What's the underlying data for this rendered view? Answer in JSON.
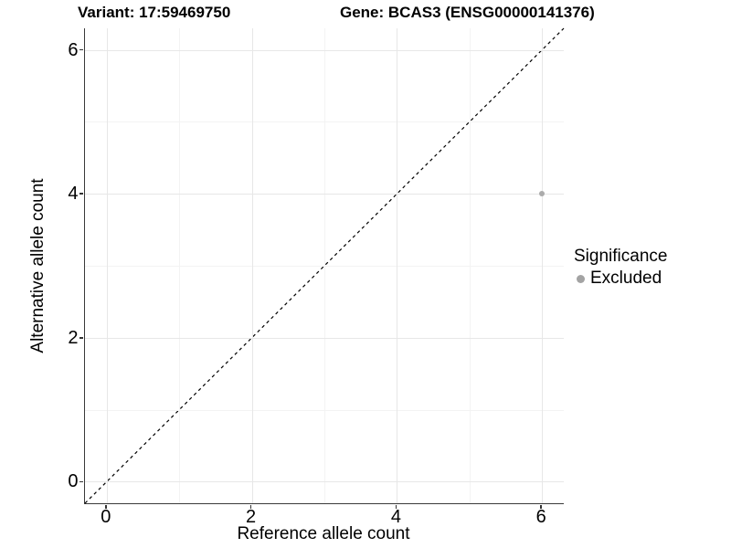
{
  "titles": {
    "variant": "Variant: 17:59469750",
    "gene": "Gene: BCAS3 (ENSG00000141376)"
  },
  "chart_data": {
    "type": "scatter",
    "title_left": "Variant: 17:59469750",
    "title_right": "Gene: BCAS3 (ENSG00000141376)",
    "xlabel": "Reference allele count",
    "ylabel": "Alternative allele count",
    "xlim": [
      -0.3,
      6.3
    ],
    "ylim": [
      -0.3,
      6.3
    ],
    "xticks": [
      0,
      2,
      4,
      6
    ],
    "yticks": [
      0,
      2,
      4,
      6
    ],
    "x_minor_gridlines": [
      1,
      3,
      5
    ],
    "y_minor_gridlines": [
      1,
      3,
      5
    ],
    "grid": true,
    "identity_line": {
      "style": "dashed",
      "from": [
        -0.3,
        -0.3
      ],
      "to": [
        6.3,
        6.3
      ],
      "color": "#000000"
    },
    "series": [
      {
        "name": "Excluded",
        "color": "#ababab",
        "points": [
          {
            "x": 6,
            "y": 4
          }
        ]
      }
    ],
    "legend": {
      "title": "Significance",
      "position": "right",
      "items": [
        {
          "label": "Excluded",
          "color": "#a3a3a3"
        }
      ]
    }
  },
  "colors": {
    "background": "#ffffff",
    "axis_line": "#3a3a3a",
    "major_grid": "#e7e7e7",
    "minor_grid": "#f3f3f3",
    "point": "#ababab",
    "text": "#000000"
  }
}
